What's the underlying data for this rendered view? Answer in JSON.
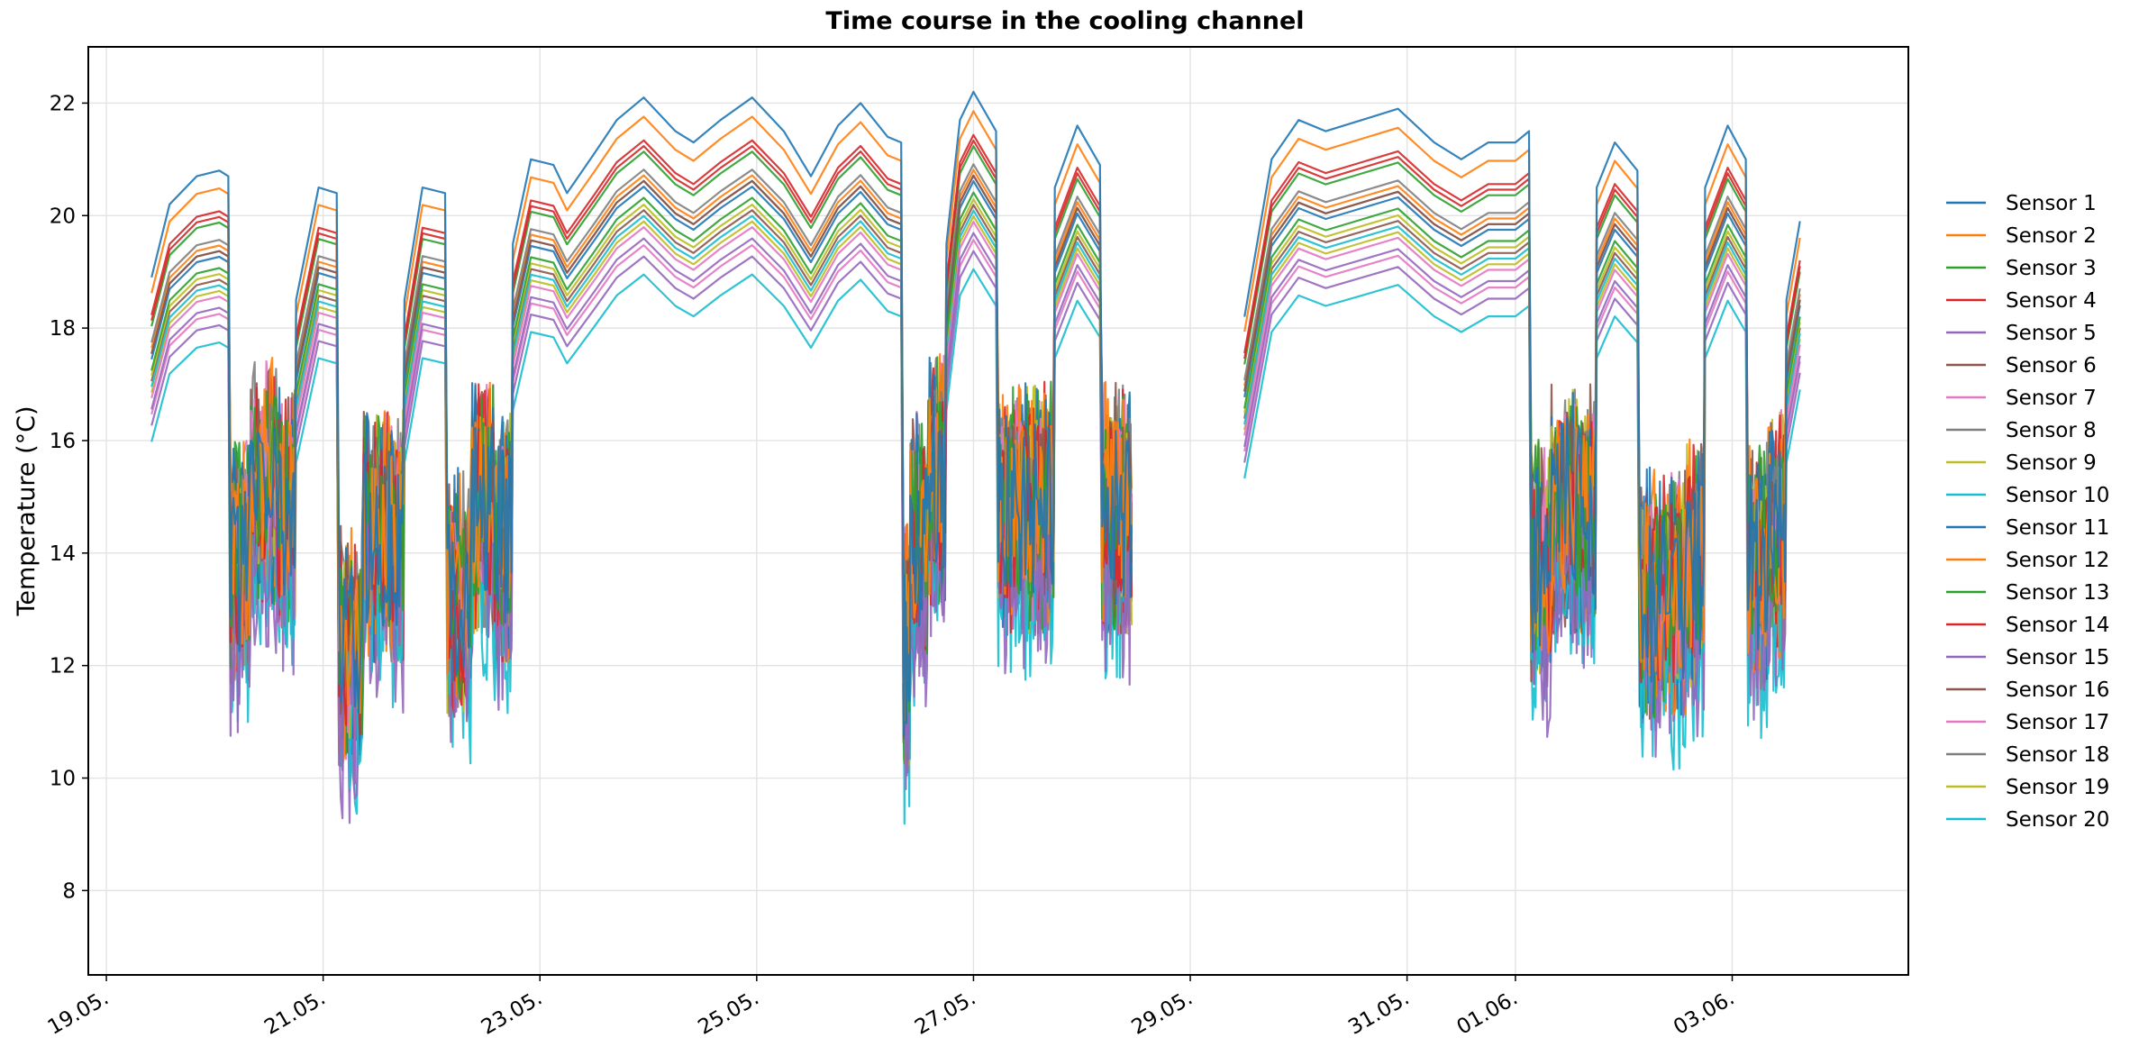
{
  "chart_data": {
    "type": "line",
    "title": "Time course in the cooling channel",
    "xlabel": "",
    "ylabel": "Temperature (°C)",
    "ylim": [
      6.5,
      23.0
    ],
    "yticks": [
      8,
      10,
      12,
      14,
      16,
      18,
      20,
      22
    ],
    "xlim": [
      "2023-05-18T20:00",
      "2023-06-04T15:00"
    ],
    "xtick_dates": [
      "2023-05-19",
      "2023-05-21",
      "2023-05-23",
      "2023-05-25",
      "2023-05-27",
      "2023-05-29",
      "2023-05-31",
      "2023-06-01",
      "2023-06-03"
    ],
    "xtick_labels": [
      "19.05.",
      "21.05.",
      "23.05.",
      "25.05.",
      "27.05.",
      "29.05.",
      "31.05.",
      "01.06.",
      "03.06."
    ],
    "grid": true,
    "legend_position": "right",
    "sensor1_profile": [
      [
        "2023-05-19T10:00",
        18.9
      ],
      [
        "2023-05-19T14:00",
        20.2
      ],
      [
        "2023-05-19T20:00",
        20.7
      ],
      [
        "2023-05-20T01:00",
        20.8
      ],
      [
        "2023-05-20T03:00",
        20.7
      ],
      [
        "2023-05-20T03:30",
        13.5
      ],
      [
        "2023-05-20T08:00",
        15.0
      ],
      [
        "2023-05-20T14:00",
        14.5
      ],
      [
        "2023-05-20T18:00",
        18.5
      ],
      [
        "2023-05-20T23:00",
        20.5
      ],
      [
        "2023-05-21T03:00",
        20.4
      ],
      [
        "2023-05-21T03:30",
        12.0
      ],
      [
        "2023-05-21T09:00",
        14.0
      ],
      [
        "2023-05-21T14:00",
        14.0
      ],
      [
        "2023-05-21T18:00",
        18.5
      ],
      [
        "2023-05-21T22:00",
        20.5
      ],
      [
        "2023-05-22T03:00",
        20.4
      ],
      [
        "2023-05-22T03:30",
        13.0
      ],
      [
        "2023-05-22T09:00",
        14.5
      ],
      [
        "2023-05-22T14:00",
        14.0
      ],
      [
        "2023-05-22T18:00",
        19.5
      ],
      [
        "2023-05-22T22:00",
        21.0
      ],
      [
        "2023-05-23T03:00",
        20.9
      ],
      [
        "2023-05-23T06:00",
        20.4
      ],
      [
        "2023-05-23T12:00",
        21.1
      ],
      [
        "2023-05-23T17:00",
        21.7
      ],
      [
        "2023-05-23T23:00",
        22.1
      ],
      [
        "2023-05-24T06:00",
        21.5
      ],
      [
        "2023-05-24T10:00",
        21.3
      ],
      [
        "2023-05-24T16:00",
        21.7
      ],
      [
        "2023-05-24T23:00",
        22.1
      ],
      [
        "2023-05-25T06:00",
        21.5
      ],
      [
        "2023-05-25T12:00",
        20.7
      ],
      [
        "2023-05-25T18:00",
        21.6
      ],
      [
        "2023-05-25T23:00",
        22.0
      ],
      [
        "2023-05-26T05:00",
        21.4
      ],
      [
        "2023-05-26T08:00",
        21.3
      ],
      [
        "2023-05-26T08:30",
        12.0
      ],
      [
        "2023-05-26T10:00",
        14.0
      ],
      [
        "2023-05-26T14:00",
        15.0
      ],
      [
        "2023-05-26T18:00",
        19.5
      ],
      [
        "2023-05-26T21:00",
        21.7
      ],
      [
        "2023-05-27T00:00",
        22.2
      ],
      [
        "2023-05-27T05:00",
        21.5
      ],
      [
        "2023-05-27T05:30",
        14.5
      ],
      [
        "2023-05-27T09:00",
        14.5
      ],
      [
        "2023-05-27T14:00",
        14.5
      ],
      [
        "2023-05-27T18:00",
        20.5
      ],
      [
        "2023-05-27T23:00",
        21.6
      ],
      [
        "2023-05-28T04:00",
        20.9
      ],
      [
        "2023-05-28T04:30",
        14.5
      ],
      [
        "2023-05-28T08:00",
        14.5
      ],
      [
        "2023-05-28T11:00",
        14.5
      ],
      null,
      [
        "2023-05-29T12:00",
        18.2
      ],
      [
        "2023-05-29T18:00",
        21.0
      ],
      [
        "2023-05-30T00:00",
        21.7
      ],
      [
        "2023-05-30T06:00",
        21.5
      ],
      [
        "2023-05-30T14:00",
        21.7
      ],
      [
        "2023-05-30T22:00",
        21.9
      ],
      [
        "2023-05-31T06:00",
        21.3
      ],
      [
        "2023-05-31T12:00",
        21.0
      ],
      [
        "2023-05-31T18:00",
        21.3
      ],
      [
        "2023-06-01T00:00",
        21.3
      ],
      [
        "2023-06-01T03:00",
        21.5
      ],
      [
        "2023-06-01T03:30",
        13.5
      ],
      [
        "2023-06-01T08:00",
        14.5
      ],
      [
        "2023-06-01T14:00",
        14.5
      ],
      [
        "2023-06-01T18:00",
        20.5
      ],
      [
        "2023-06-01T22:00",
        21.3
      ],
      [
        "2023-06-02T03:00",
        20.8
      ],
      [
        "2023-06-02T03:30",
        13.0
      ],
      [
        "2023-06-02T08:00",
        13.0
      ],
      [
        "2023-06-02T14:00",
        13.5
      ],
      [
        "2023-06-02T18:00",
        20.5
      ],
      [
        "2023-06-02T23:00",
        21.6
      ],
      [
        "2023-06-03T03:00",
        21.0
      ],
      [
        "2023-06-03T03:30",
        13.5
      ],
      [
        "2023-06-03T08:00",
        14.0
      ],
      [
        "2023-06-03T12:00",
        18.5
      ],
      [
        "2023-06-03T15:00",
        19.9
      ]
    ],
    "series": [
      {
        "name": "Sensor 1",
        "color": "#1f77b4",
        "offset": 0.0,
        "scale": 1.0
      },
      {
        "name": "Sensor 2",
        "color": "#ff7f0e",
        "offset": -0.9,
        "scale": 0.98
      },
      {
        "name": "Sensor 3",
        "color": "#2ca02c",
        "offset": -1.9,
        "scale": 0.96
      },
      {
        "name": "Sensor 4",
        "color": "#d62728",
        "offset": -1.2,
        "scale": 0.97
      },
      {
        "name": "Sensor 5",
        "color": "#9467bd",
        "offset": -2.4,
        "scale": 0.95
      },
      {
        "name": "Sensor 6",
        "color": "#8c564b",
        "offset": -1.6,
        "scale": 0.96
      },
      {
        "name": "Sensor 7",
        "color": "#e377c2",
        "offset": -2.2,
        "scale": 0.95
      },
      {
        "name": "Sensor 8",
        "color": "#7f7f7f",
        "offset": -1.4,
        "scale": 0.96
      },
      {
        "name": "Sensor 9",
        "color": "#bcbd22",
        "offset": -1.8,
        "scale": 0.95
      },
      {
        "name": "Sensor 10",
        "color": "#17becf",
        "offset": -2.0,
        "scale": 0.95
      },
      {
        "name": "Sensor 11",
        "color": "#1f77b4",
        "offset": -1.7,
        "scale": 0.96
      },
      {
        "name": "Sensor 12",
        "color": "#ff7f0e",
        "offset": -1.5,
        "scale": 0.96
      },
      {
        "name": "Sensor 13",
        "color": "#2ca02c",
        "offset": -1.3,
        "scale": 0.97
      },
      {
        "name": "Sensor 14",
        "color": "#d62728",
        "offset": -1.1,
        "scale": 0.97
      },
      {
        "name": "Sensor 15",
        "color": "#9467bd",
        "offset": -2.5,
        "scale": 0.94
      },
      {
        "name": "Sensor 16",
        "color": "#8c564b",
        "offset": -1.9,
        "scale": 0.95
      },
      {
        "name": "Sensor 17",
        "color": "#e377c2",
        "offset": -2.3,
        "scale": 0.94
      },
      {
        "name": "Sensor 18",
        "color": "#7f7f7f",
        "offset": -1.6,
        "scale": 0.96
      },
      {
        "name": "Sensor 19",
        "color": "#bcbd22",
        "offset": -2.1,
        "scale": 0.95
      },
      {
        "name": "Sensor 20",
        "color": "#17becf",
        "offset": -2.6,
        "scale": 0.93
      }
    ]
  }
}
